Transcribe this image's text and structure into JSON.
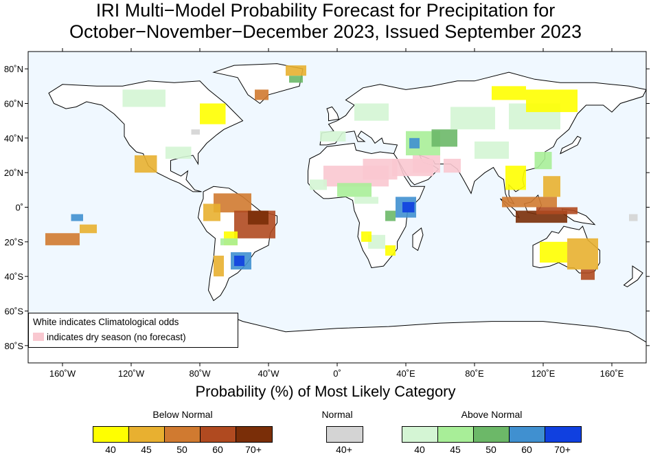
{
  "title": {
    "line1": "IRI Multi−Model Probability Forecast for Precipitation for",
    "line2": "October−November−December 2023, Issued September 2023"
  },
  "map": {
    "ocean_color": "#f0f8ff",
    "land_outline_color": "#000000",
    "lat_ticks": [
      "80˚N",
      "60˚N",
      "40˚N",
      "20˚N",
      "0˚",
      "20˚S",
      "40˚S",
      "60˚S",
      "80˚S"
    ],
    "lon_ticks": [
      "160˚W",
      "120˚W",
      "80˚W",
      "40˚W",
      "0˚",
      "40˚E",
      "80˚E",
      "120˚E",
      "160˚E"
    ]
  },
  "x_axis_title": "Probability (%) of Most Likely Category",
  "note": {
    "line1": "White indicates Climatological odds",
    "line2": "indicates dry season (no forecast)",
    "dry_color": "#f9c8d0"
  },
  "legend": {
    "below": {
      "label": "Below Normal",
      "colors": [
        "#ffff00",
        "#e8b030",
        "#d07a30",
        "#b04a20",
        "#7a2e08"
      ],
      "values": [
        "40",
        "45",
        "50",
        "60",
        "70+"
      ]
    },
    "normal": {
      "label": "Normal",
      "colors": [
        "#d4d4d4"
      ],
      "values": [
        "40+"
      ]
    },
    "above": {
      "label": "Above Normal",
      "colors": [
        "#d4f5d4",
        "#a8ee98",
        "#6cb868",
        "#4090d0",
        "#1040e0"
      ],
      "values": [
        "40",
        "45",
        "50",
        "60",
        "70+"
      ]
    }
  }
}
